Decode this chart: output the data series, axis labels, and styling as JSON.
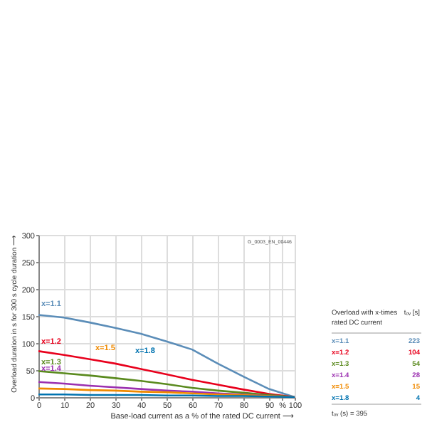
{
  "chart_data": {
    "type": "line",
    "xlabel": "Base-load current as a % of the rated DC current ⟶",
    "ylabel": "Overload duration in s for 300 s cycle duration ⟶",
    "legend_title": "Overload with x-times\nrated DC current",
    "x": [
      0,
      10,
      20,
      30,
      40,
      50,
      60,
      70,
      80,
      90,
      100
    ],
    "series": [
      {
        "name": "x=1.1",
        "color": "#5b8db8",
        "values": [
          152,
          147,
          138,
          128,
          117,
          103,
          88,
          62,
          38,
          15,
          0
        ]
      },
      {
        "name": "x=1.2",
        "color": "#e8001c",
        "values": [
          85,
          78,
          70,
          62,
          52,
          42,
          32,
          23,
          14,
          6,
          0
        ]
      },
      {
        "name": "x=1.3",
        "color": "#5a8a1e",
        "values": [
          48,
          44,
          40,
          35,
          30,
          24,
          17,
          12,
          8,
          4,
          0
        ]
      },
      {
        "name": "x=1.4",
        "color": "#9b30b0",
        "values": [
          28,
          25,
          21,
          18,
          15,
          12,
          10,
          7,
          5,
          2,
          0
        ]
      },
      {
        "name": "x=1.5",
        "color": "#f08a00",
        "values": [
          16,
          15,
          13,
          12,
          10,
          9,
          7,
          5,
          4,
          2,
          0
        ]
      },
      {
        "name": "x=1.8",
        "color": "#0073b0",
        "values": [
          5,
          5,
          4,
          4,
          4,
          3,
          3,
          2,
          2,
          1,
          0
        ]
      }
    ],
    "xlim": [
      0,
      100
    ],
    "xticks": [
      0,
      10,
      20,
      30,
      40,
      50,
      60,
      70,
      80,
      90,
      {
        "value": 95,
        "label": "%"
      },
      100
    ],
    "ylim": [
      0,
      300
    ],
    "yticks": [
      0,
      50,
      100,
      150,
      200,
      250,
      300
    ],
    "grid": true,
    "legend": "right",
    "marker": "none",
    "line_style": "solid",
    "annotations": [
      "G_0003_EN_00446",
      "tₒᵥ [s]",
      "223",
      "104",
      "54",
      "28",
      "15",
      "4",
      "tₒᵥ (s) = 395"
    ]
  }
}
